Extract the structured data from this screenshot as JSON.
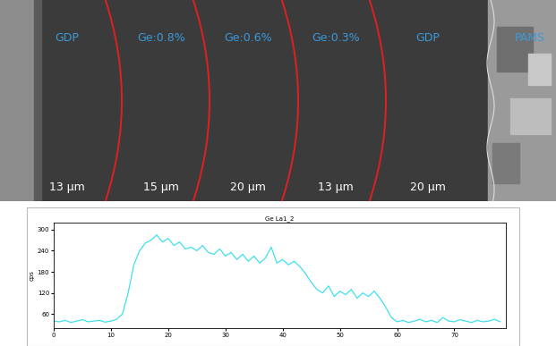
{
  "image_panel": {
    "layers": [
      {
        "label": "GDP",
        "thickness": "13 μm"
      },
      {
        "label": "Ge:0.8%",
        "thickness": "15 μm"
      },
      {
        "label": "Ge:0.6%",
        "thickness": "20 μm"
      },
      {
        "label": "Ge:0.3%",
        "thickness": "13 μm"
      },
      {
        "label": "GDP",
        "thickness": "20 μm"
      }
    ],
    "side_label": "PAMS"
  },
  "chart_data": {
    "type": "line",
    "title": "Ge La1_2",
    "y_label": "cps",
    "color": "#3fe0ef",
    "x": [
      0,
      1,
      2,
      3,
      4,
      5,
      6,
      7,
      8,
      9,
      10,
      11,
      12,
      13,
      14,
      15,
      16,
      17,
      18,
      19,
      20,
      21,
      22,
      23,
      24,
      25,
      26,
      27,
      28,
      29,
      30,
      31,
      32,
      33,
      34,
      35,
      36,
      37,
      38,
      39,
      40,
      41,
      42,
      43,
      44,
      45,
      46,
      47,
      48,
      49,
      50,
      51,
      52,
      53,
      54,
      55,
      56,
      57,
      58,
      59,
      60,
      61,
      62,
      63,
      64,
      65,
      66,
      67,
      68,
      69,
      70,
      71,
      72,
      73,
      74,
      75,
      76,
      77,
      78
    ],
    "values": [
      40,
      38,
      42,
      36,
      40,
      44,
      38,
      40,
      42,
      37,
      40,
      45,
      60,
      120,
      200,
      240,
      262,
      270,
      285,
      265,
      275,
      255,
      265,
      245,
      250,
      240,
      255,
      235,
      230,
      245,
      225,
      235,
      215,
      230,
      210,
      225,
      205,
      220,
      250,
      205,
      215,
      200,
      210,
      195,
      175,
      150,
      130,
      120,
      140,
      110,
      125,
      115,
      130,
      105,
      120,
      110,
      125,
      105,
      80,
      50,
      38,
      42,
      36,
      40,
      45,
      38,
      42,
      36,
      50,
      40,
      38,
      44,
      40,
      36,
      42,
      38,
      40,
      45,
      38
    ],
    "xlim": [
      0,
      79
    ],
    "ylim": [
      20,
      320
    ],
    "xticks": [
      0,
      10,
      20,
      30,
      40,
      50,
      60,
      70
    ],
    "yticks": [
      60,
      120,
      180,
      240,
      300
    ]
  }
}
